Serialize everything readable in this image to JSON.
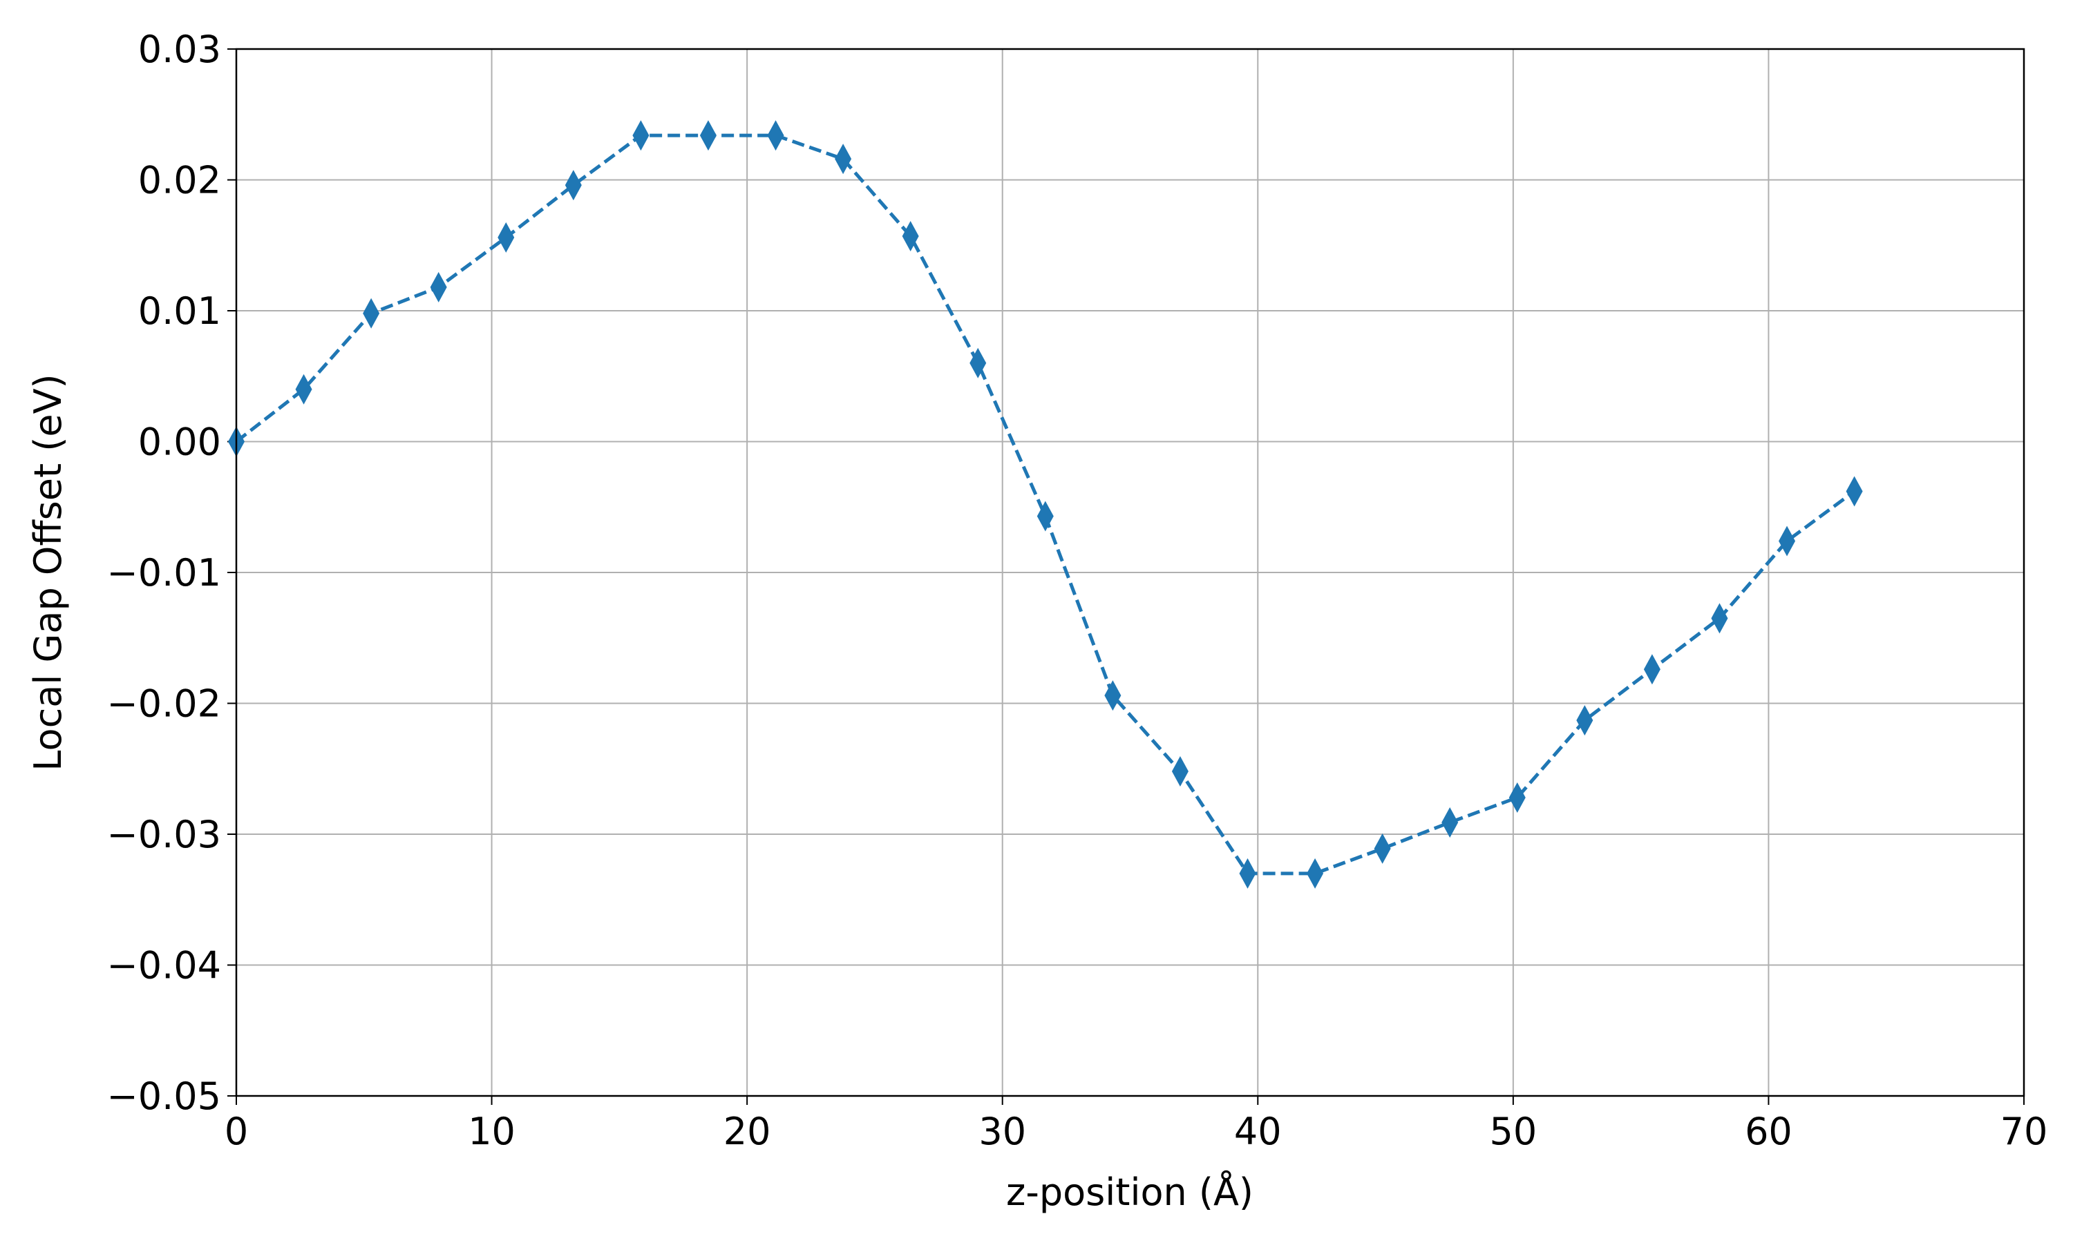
{
  "chart_data": {
    "type": "line",
    "xlabel": "z-position (Å)",
    "ylabel": "Local Gap Offset (eV)",
    "x": [
      0,
      2.64,
      5.28,
      7.92,
      10.56,
      13.2,
      15.84,
      18.48,
      21.12,
      23.76,
      26.4,
      29.04,
      31.68,
      34.32,
      36.96,
      39.6,
      42.24,
      44.88,
      47.52,
      50.16,
      52.8,
      55.44,
      58.08,
      60.72,
      63.36
    ],
    "series": [
      {
        "name": "Local Gap Offset",
        "color": "#1f77b4",
        "values": [
          0,
          0.004,
          0.0098,
          0.0118,
          0.0156,
          0.0196,
          0.0234,
          0.0234,
          0.0234,
          0.0216,
          0.0157,
          0.006,
          -0.0057,
          -0.0194,
          -0.0252,
          -0.033,
          -0.033,
          -0.0311,
          -0.0291,
          -0.0272,
          -0.0213,
          -0.0174,
          -0.0135,
          -0.0076,
          -0.0038
        ]
      }
    ],
    "xlim": [
      0,
      70
    ],
    "xticks": [
      0,
      10,
      20,
      30,
      40,
      50,
      60,
      70
    ],
    "ylim": [
      -0.05,
      0.03
    ],
    "yticks": [
      {
        "value": -0.05,
        "label": "−0.05"
      },
      {
        "value": -0.04,
        "label": "−0.04"
      },
      {
        "value": -0.03,
        "label": "−0.03"
      },
      {
        "value": -0.02,
        "label": "−0.02"
      },
      {
        "value": -0.01,
        "label": "−0.01"
      },
      {
        "value": 0,
        "label": "0.00"
      },
      {
        "value": 0.01,
        "label": "0.01"
      },
      {
        "value": 0.02,
        "label": "0.02"
      },
      {
        "value": 0.03,
        "label": "0.03"
      }
    ],
    "grid": true
  }
}
